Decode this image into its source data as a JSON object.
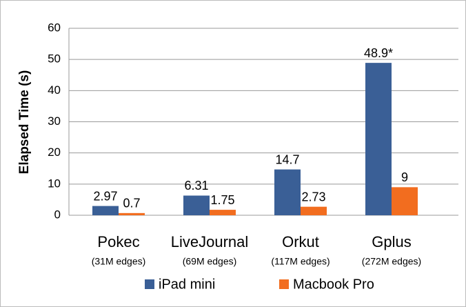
{
  "chart_data": {
    "type": "bar",
    "y_label": "Elapsed Time (s)",
    "categories": [
      "Pokec",
      "LiveJournal",
      "Orkut",
      "Gplus"
    ],
    "category_notes": [
      "(31M edges)",
      "(69M edges)",
      "(117M edges)",
      "(272M edges)"
    ],
    "series": [
      {
        "name": "iPad mini",
        "color": "#3a5f96",
        "values": [
          2.97,
          6.31,
          14.7,
          48.9
        ],
        "value_labels": [
          "2.97",
          "6.31",
          "14.7",
          "48.9*"
        ]
      },
      {
        "name": "Macbook Pro",
        "color": "#f26d1f",
        "values": [
          0.7,
          1.75,
          2.73,
          9
        ]
      }
    ],
    "ylim": [
      0,
      60
    ],
    "yticks": [
      0,
      10,
      20,
      30,
      40,
      50,
      60
    ],
    "grid": true,
    "legend": "bottom"
  }
}
